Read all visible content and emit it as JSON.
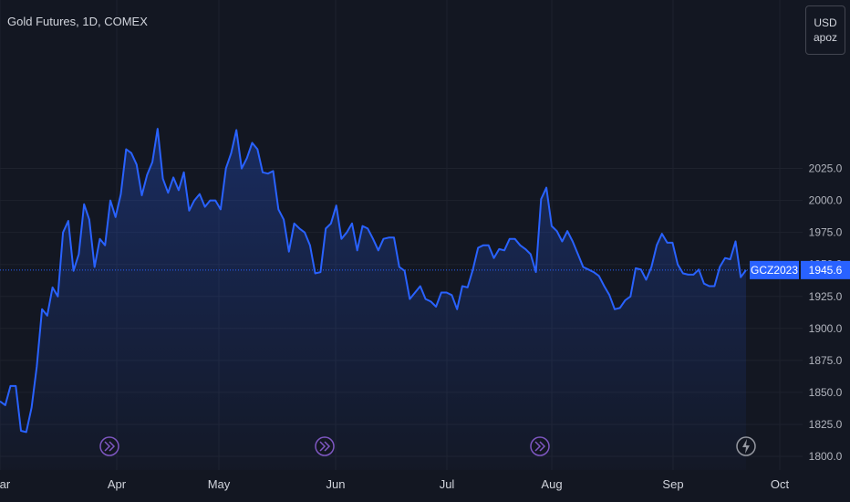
{
  "title": "Gold Futures, 1D, COMEX",
  "currency": {
    "line1": "USD",
    "line2": "apoz"
  },
  "symbol_label": "GCZ2023",
  "last_price_label": "1945.6",
  "colors": {
    "background": "#131722",
    "line": "#2962ff",
    "label_bg": "#2962ff"
  },
  "chart_data": {
    "type": "area",
    "title": "Gold Futures, 1D, COMEX",
    "y_axis_ticks": [
      1800.0,
      1825.0,
      1850.0,
      1875.0,
      1900.0,
      1925.0,
      1950.0,
      1975.0,
      2000.0,
      2025.0
    ],
    "y_axis_tick_labels": [
      "1800.0",
      "1825.0",
      "1850.0",
      "1875.0",
      "1900.0",
      "1925.0",
      "1950.0",
      "1975.0",
      "2000.0",
      "2025.0"
    ],
    "ylim": [
      1795,
      2055
    ],
    "x_axis_labels": [
      "Mar",
      "Apr",
      "May",
      "Jun",
      "Jul",
      "Aug",
      "Sep",
      "Oct"
    ],
    "last_price": 1945.6,
    "grid": true,
    "series": [
      {
        "values": [
          1843,
          1840,
          1855,
          1855,
          1820,
          1819,
          1838,
          1870,
          1915,
          1910,
          1932,
          1925,
          1975,
          1984,
          1945,
          1958,
          1997,
          1985,
          1948,
          1970,
          1965,
          2000,
          1987,
          2005,
          2040,
          2037,
          2028,
          2004,
          2020,
          2030,
          2056,
          2017,
          2006,
          2018,
          2008,
          2022,
          1992,
          2000,
          2005,
          1995,
          2000,
          2000,
          1993,
          2025,
          2037,
          2055,
          2025,
          2033,
          2045,
          2040,
          2022,
          2021,
          2023,
          1993,
          1985,
          1960,
          1982,
          1978,
          1975,
          1965,
          1943,
          1944,
          1978,
          1982,
          1996,
          1970,
          1975,
          1982,
          1961,
          1980,
          1978,
          1970,
          1961,
          1970,
          1971,
          1971,
          1948,
          1945,
          1923,
          1928,
          1933,
          1923,
          1921,
          1917,
          1928,
          1928,
          1926,
          1915,
          1933,
          1932,
          1946,
          1963,
          1965,
          1965,
          1955,
          1962,
          1961,
          1970,
          1970,
          1965,
          1962,
          1958,
          1944,
          2001,
          2010,
          1980,
          1976,
          1968,
          1976,
          1968,
          1958,
          1948,
          1946,
          1944,
          1941,
          1933,
          1926,
          1915,
          1916,
          1922,
          1925,
          1947,
          1946,
          1938,
          1948,
          1965,
          1974,
          1967,
          1967,
          1950,
          1943,
          1942,
          1942,
          1946,
          1935,
          1933,
          1933,
          1948,
          1955,
          1954,
          1968,
          1940,
          1945.6
        ]
      }
    ],
    "events": [
      "dividend",
      "dividend",
      "dividend",
      "earnings"
    ]
  }
}
